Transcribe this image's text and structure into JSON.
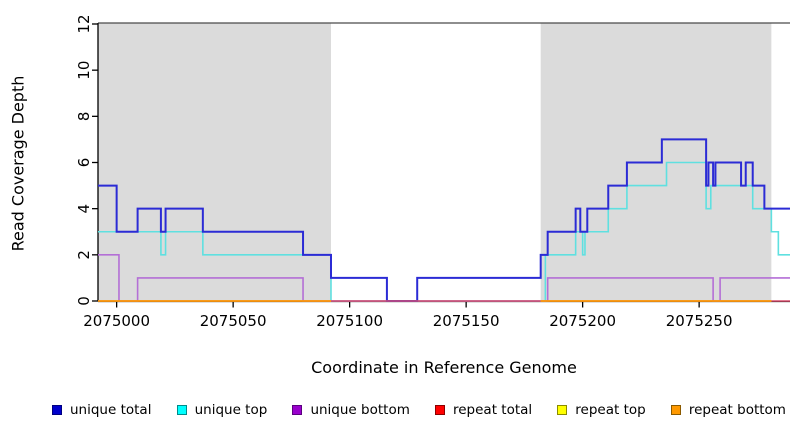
{
  "chart_data": {
    "type": "line",
    "subtype": "step",
    "title": "",
    "xlabel": "Coordinate in Reference Genome",
    "ylabel": "Read Coverage Depth",
    "xlim": [
      2074992,
      2075289
    ],
    "ylim": [
      0,
      12
    ],
    "x_ticks": [
      2075000,
      2075050,
      2075100,
      2075150,
      2075200,
      2075250
    ],
    "y_ticks": [
      0,
      2,
      4,
      6,
      8,
      10,
      12
    ],
    "grid": false,
    "legend_position": "bottom",
    "shaded_regions": [
      {
        "name": "repeat-region-left",
        "from": 2074992,
        "to": 2075092,
        "color": "#DBDBDB"
      },
      {
        "name": "repeat-region-right",
        "from": 2075182,
        "to": 2075281,
        "color": "#DBDBDB"
      }
    ],
    "top_boundary_line": {
      "color": "#4a4a4a"
    },
    "series": [
      {
        "name": "unique top",
        "color": "#5FE0E0",
        "width": 1.6,
        "segments": [
          {
            "steps": [
              [
                2074992,
                3
              ],
              [
                2075019,
                2
              ],
              [
                2075021,
                3
              ],
              [
                2075037,
                2
              ],
              [
                2075092,
                0
              ],
              [
                2075184,
                2
              ],
              [
                2075197,
                3
              ],
              [
                2075200,
                2
              ],
              [
                2075201,
                3
              ],
              [
                2075211,
                4
              ],
              [
                2075219,
                5
              ],
              [
                2075236,
                6
              ],
              [
                2075253,
                4
              ],
              [
                2075255,
                5
              ],
              [
                2075273,
                4
              ],
              [
                2075281,
                3
              ],
              [
                2075284,
                2
              ]
            ],
            "end": 2075289
          }
        ]
      },
      {
        "name": "unique bottom",
        "color": "#B46FD6",
        "width": 1.6,
        "segments": [
          {
            "steps": [
              [
                2074992,
                2
              ],
              [
                2075001,
                0
              ],
              [
                2075009,
                1
              ],
              [
                2075080,
                0
              ],
              [
                2075185,
                1
              ],
              [
                2075256,
                0
              ],
              [
                2075259,
                1
              ]
            ],
            "end": 2075289
          }
        ]
      },
      {
        "name": "unique total",
        "color": "#2B2BD5",
        "width": 2,
        "segments": [
          {
            "steps": [
              [
                2074992,
                5
              ],
              [
                2075000,
                3
              ],
              [
                2075009,
                4
              ],
              [
                2075019,
                3
              ],
              [
                2075021,
                4
              ],
              [
                2075037,
                3
              ],
              [
                2075080,
                2
              ],
              [
                2075092,
                1
              ],
              [
                2075116,
                0
              ],
              [
                2075129,
                1
              ],
              [
                2075182,
                2
              ],
              [
                2075185,
                3
              ],
              [
                2075197,
                4
              ],
              [
                2075199,
                3
              ],
              [
                2075202,
                4
              ],
              [
                2075211,
                5
              ],
              [
                2075219,
                6
              ],
              [
                2075234,
                7
              ],
              [
                2075253,
                5
              ],
              [
                2075254,
                6
              ],
              [
                2075256,
                5
              ],
              [
                2075257,
                6
              ],
              [
                2075268,
                5
              ],
              [
                2075270,
                6
              ],
              [
                2075273,
                5
              ],
              [
                2075278,
                4
              ]
            ],
            "end": 2075289
          }
        ]
      },
      {
        "name": "repeat total",
        "color": "#D84F6E",
        "width": 1.4,
        "segments": [
          {
            "steps": [
              [
                2074992,
                0
              ]
            ],
            "end": 2075289
          }
        ]
      },
      {
        "name": "repeat top",
        "color": "#F0E442",
        "width": 1.4,
        "segments": [
          {
            "steps": [
              [
                2074992,
                0
              ]
            ],
            "end": 2075092
          },
          {
            "steps": [
              [
                2075182,
                0
              ]
            ],
            "end": 2075281
          }
        ]
      },
      {
        "name": "repeat bottom",
        "color": "#FF9000",
        "width": 1.6,
        "segments": [
          {
            "steps": [
              [
                2074992,
                0
              ]
            ],
            "end": 2075092
          },
          {
            "steps": [
              [
                2075182,
                0
              ]
            ],
            "end": 2075281
          }
        ]
      }
    ],
    "legend": {
      "items": [
        {
          "label": "unique total",
          "fill": "#0000CC",
          "border": "#000080"
        },
        {
          "label": "unique top",
          "fill": "#00FFFF",
          "border": "#008B8B"
        },
        {
          "label": "unique bottom",
          "fill": "#9900CC",
          "border": "#5C0080"
        },
        {
          "label": "repeat total",
          "fill": "#FF0000",
          "border": "#8B0000"
        },
        {
          "label": "repeat top",
          "fill": "#FFFF00",
          "border": "#8B8B00"
        },
        {
          "label": "repeat bottom",
          "fill": "#FF9900",
          "border": "#8B5A00"
        }
      ]
    }
  }
}
